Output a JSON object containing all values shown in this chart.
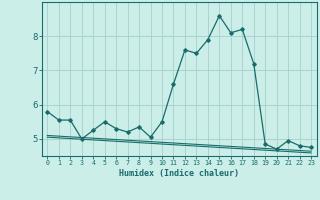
{
  "title": "",
  "xlabel": "Humidex (Indice chaleur)",
  "background_color": "#cceee8",
  "grid_color": "#aad4ce",
  "line_color": "#1a6b6b",
  "x_values": [
    0,
    1,
    2,
    3,
    4,
    5,
    6,
    7,
    8,
    9,
    10,
    11,
    12,
    13,
    14,
    15,
    16,
    17,
    18,
    19,
    20,
    21,
    22,
    23
  ],
  "line1_y": [
    5.8,
    5.55,
    5.55,
    5.0,
    5.25,
    5.5,
    5.3,
    5.2,
    5.35,
    5.05,
    5.5,
    6.6,
    7.6,
    7.5,
    7.9,
    8.6,
    8.1,
    8.2,
    7.2,
    4.85,
    4.7,
    4.95,
    4.8,
    4.75
  ],
  "line2_y": [
    5.05,
    5.03,
    5.01,
    4.99,
    4.97,
    4.95,
    4.93,
    4.91,
    4.89,
    4.87,
    4.85,
    4.83,
    4.81,
    4.79,
    4.77,
    4.75,
    4.73,
    4.71,
    4.69,
    4.67,
    4.65,
    4.63,
    4.61,
    4.59
  ],
  "line3_y": [
    5.1,
    5.08,
    5.06,
    5.04,
    5.02,
    5.0,
    4.98,
    4.96,
    4.94,
    4.92,
    4.9,
    4.88,
    4.86,
    4.84,
    4.82,
    4.8,
    4.78,
    4.76,
    4.74,
    4.72,
    4.7,
    4.68,
    4.66,
    4.64
  ],
  "ylim": [
    4.5,
    9.0
  ],
  "xlim_min": -0.5,
  "xlim_max": 23.5,
  "yticks": [
    5,
    6,
    7,
    8
  ],
  "xticks": [
    0,
    1,
    2,
    3,
    4,
    5,
    6,
    7,
    8,
    9,
    10,
    11,
    12,
    13,
    14,
    15,
    16,
    17,
    18,
    19,
    20,
    21,
    22,
    23
  ]
}
